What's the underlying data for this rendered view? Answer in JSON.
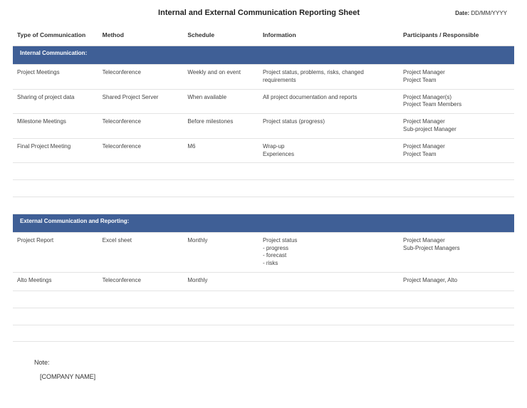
{
  "header": {
    "title": "Internal and External Communication Reporting Sheet",
    "date_label": "Date:",
    "date_value": "DD/MM/YYYY"
  },
  "columns": {
    "type": "Type of Communication",
    "method": "Method",
    "schedule": "Schedule",
    "information": "Information",
    "participants": "Participants / Responsible"
  },
  "sections": {
    "internal": {
      "title": "Internal Communication:",
      "rows": [
        {
          "type": "Project Meetings",
          "method": "Teleconference",
          "schedule": "Weekly and on event",
          "info": "Project status, problems, risks, changed requirements",
          "participants": "Project Manager\nProject Team"
        },
        {
          "type": "Sharing of project data",
          "method": "Shared Project Server",
          "schedule": "When available",
          "info": "All project documentation and reports",
          "participants": "Project  Manager(s)\nProject Team Members"
        },
        {
          "type": "Milestone Meetings",
          "method": "Teleconference",
          "schedule": "Before milestones",
          "info": "Project status (progress)",
          "participants": "Project Manager\nSub-project Manager"
        },
        {
          "type": "Final Project Meeting",
          "method": "Teleconference",
          "schedule": "M6",
          "info": "Wrap-up\nExperiences",
          "participants": "Project Manager\nProject Team"
        }
      ],
      "empty_rows": 3
    },
    "external": {
      "title": "External Communication and Reporting:",
      "rows": [
        {
          "type": "Project Report",
          "method": "Excel sheet",
          "schedule": "Monthly",
          "info": "Project status\n- progress\n- forecast\n- risks",
          "participants": "Project Manager\nSub-Project Managers"
        },
        {
          "type": "Alto Meetings",
          "method": "Teleconference",
          "schedule": "Monthly",
          "info": "",
          "participants": "Project Manager, Alto"
        }
      ],
      "empty_rows": 3
    }
  },
  "footer": {
    "note": "Note:",
    "company": "[COMPANY NAME]"
  },
  "style": {
    "band_bg": "#3f5f96",
    "band_text": "#ffffff",
    "border_color": "#e4e4e4"
  }
}
